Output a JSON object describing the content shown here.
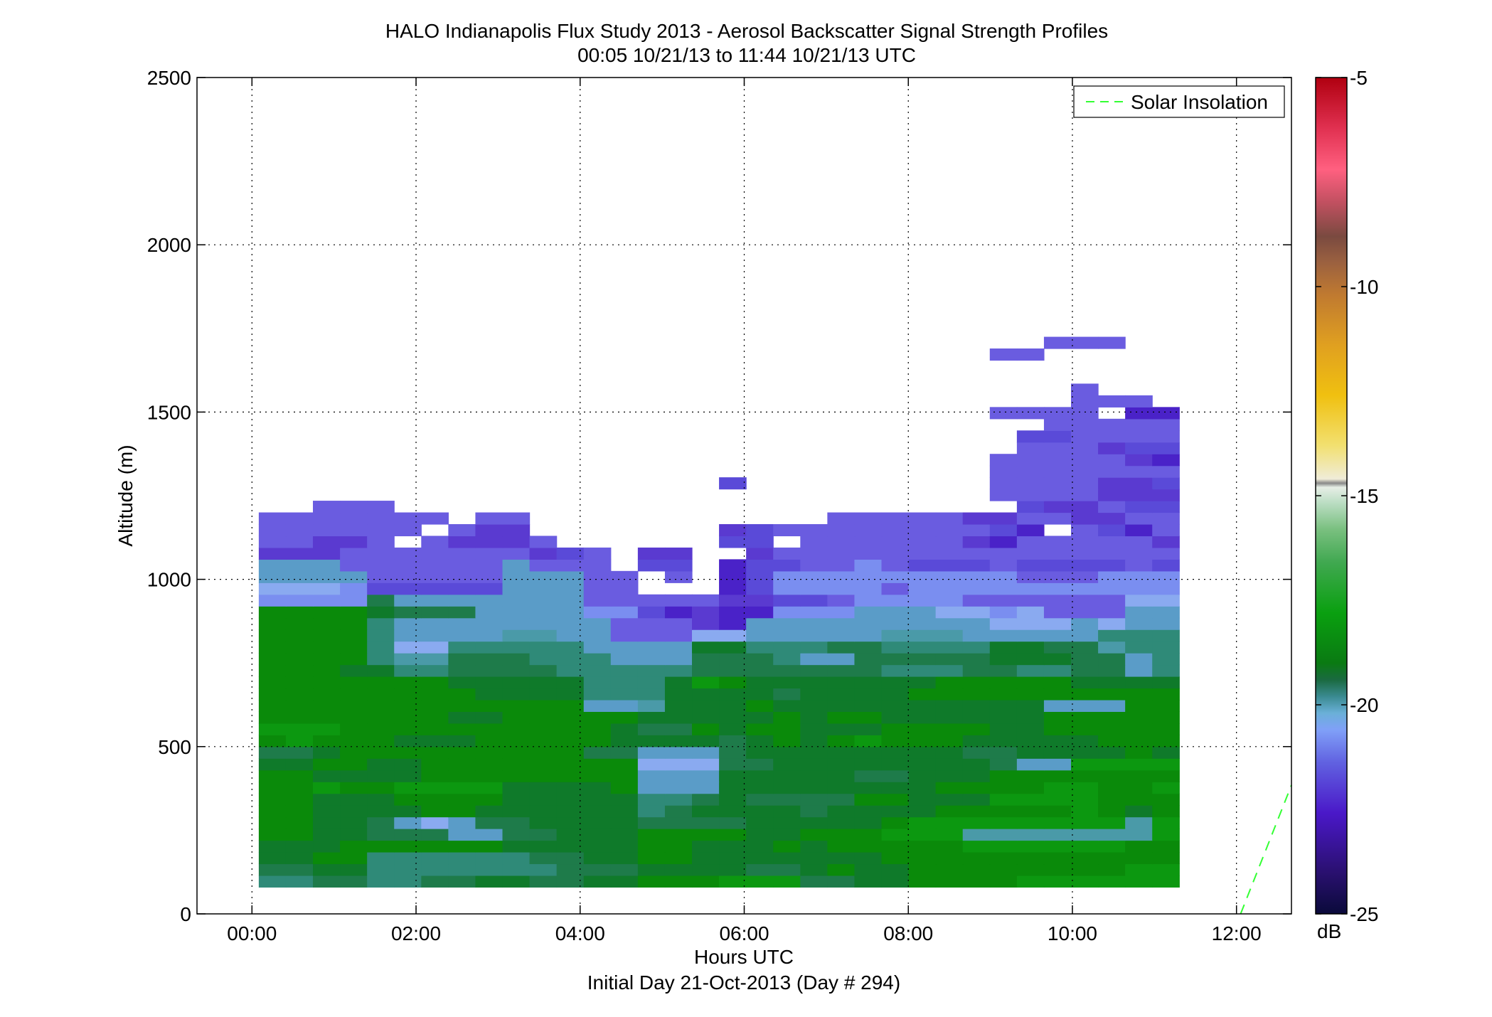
{
  "chart_data": {
    "type": "heatmap",
    "title": "HALO Indianapolis Flux Study 2013 - Aerosol Backscatter Signal Strength Profiles",
    "subtitle": "00:05 10/21/13 to 11:44 10/21/13  UTC",
    "xlabel": "Hours UTC",
    "xlabel2": "Initial Day 21-Oct-2013 (Day # 294)",
    "ylabel": "Altitude (m)",
    "x_ticks": [
      "00:00",
      "02:00",
      "04:00",
      "06:00",
      "08:00",
      "10:00",
      "12:00"
    ],
    "y_ticks": [
      "0",
      "500",
      "1000",
      "1500",
      "2000",
      "2500"
    ],
    "xlim_hours": [
      -0.67,
      12.67
    ],
    "ylim": [
      0,
      2500
    ],
    "grid": true,
    "legend": {
      "label": "Solar Insolation",
      "style": "dashed",
      "color": "#33ff33",
      "placement": "top-right"
    },
    "solar_line": {
      "x_hours": [
        12.05,
        12.67
      ],
      "y": [
        0,
        385
      ]
    },
    "colorbar": {
      "unit": "dB",
      "range": [
        -25,
        -5
      ],
      "ticks": [
        "-5",
        "-10",
        "-15",
        "-20",
        "-25"
      ],
      "tick_values": [
        -5,
        -10,
        -15,
        -20,
        -25
      ]
    },
    "cells": {
      "t_start_hours": 0.083,
      "dt_hours": 0.33,
      "alt_start_m": 80,
      "dz_m": 35,
      "rows_from_bottom": [
        "BBCCBBCCDDCCDDEEEFFFCCDDEEEEFFFFFF",
        "CCDDBBBBBBBCCCDDDDCCDEDDEEEEEEEEFF",
        "DDEEBBBBBBCCDDEEDDDDDDDEEEEEEEEEEE",
        "DDDEEEEEEDDDDDEEDDDEDEEEEEFFFFFFEE",
        "EEDDCCCHHCCDDDEEEEDDEEEFFFGGGGGGGF",
        "EEDDCHIHCCDDDDCCCCDDDDDEFFFFFFFFGF",
        "EEDDDDEEDDDDDDBCDDDDCDDDDEEEEEFEDE",
        "EEDDDEEEEDDDDDBBCDCCCCEEDDDFFFFEEE",
        "EEFEEFFFFDDDDEHHHDDDDDDDDEEEEFFEEF",
        "EEDDDDEEEEEEEEHHHDDDDDCCDDDEEEEEEE",
        "DDEEDDEEEEEEEEIIICCDDDDDDDDCHHFFFF",
        "CCDEEEEEEEEECCHHHCDDDDDDDDCCDDDDED",
        "EFEEEDDDEEEEEDDDDCDEDEFEEEDDDDDEEE",
        "FFFEEEEEEEEEEDCCEDEEDDDEEEEDDEEEEE",
        "EEEEEEEDDEEEEEDDDDDEDEEDDDDDDEEEEE",
        "EEEEEEEEEEEEHHGDDDEDDDDDDDDDDHHHEE",
        "EEEEEEEEDDDDBBBDDDDCDDDDEEEEEEEEEE",
        "EEEEEEEDDDDDBBBDFEDDDDDDDEEEEEDDDD",
        "EEEDDBBCCCCBBBBBCCCCCCCBBBCCBBCCHB",
        "EEEEBGGCCCBBBHHHCCCBHHCCCCCDDDCCHB",
        "EEEEBIIBBBBBHHHHDDBBBCCBBBBDDCCGBB",
        "EEEEBHHHHGGHHKKKIIHHHHHGGGHHHHHBBB",
        "EEEEBHHHHHHHHKKKMNHHHHHHHHHIIIHIHH",
        "EEEEDCCCHHHHJJLNMNNJJJHHHIIJIKKKHH",
        "JJJJCHHHHHHHKKKKKMMLLKJJJJKKKKKKII",
        "IIIJLLLLLHHHKK...NLJJJJKJJJJJJJJJJ",
        "HHHHKKKKKHHHKK.K.NLJJJJJJJJJKKKJJJ",
        "HHHKKKKKKHKKK.LL.NLLKKJKLLLKLLLLKL",
        "MMMKKKKKKKMLK.MM..MKKKKKKKKKKKKKKK",
        "KKMMK.KMMMK......LL.KKKKKKMNKKKKKM",
        "KKKKKK.KMM.......MLKKKKKKKKLN.KLNK",
        "KKKKKKK.KK...........KKKKKMMKKMMKK",
        "..KKK.......................LMMKLL",
        "...........................KKKKMMM",
        ".................L.........KKKKMML",
        "...........................KKKKKKK",
        "...........................KKKKKMN",
        "............................KKKMLL",
        "............................LLKKKK",
        ".............................KKKKK",
        "...........................KKKK.NN",
        "..............................KKK",
        "..............................K..",
        ".................................",
        ".................................",
        "...........................KK....",
        ".............................KKK."
      ],
      "legend_codes": {
        "B": -19.6,
        "C": -19.9,
        "D": -20.2,
        "E": -20.5,
        "F": -20.8,
        "G": -21.0,
        "H": -21.3,
        "I": -21.7,
        "J": -22.0,
        "K": -22.6,
        "L": -23.0,
        "M": -23.4,
        "N": -23.8
      },
      "note_fill_colors": {
        "B": "#2f8a78",
        "C": "#1e7b4a",
        "D": "#0f7a2a",
        "E": "#0a8a0a",
        "F": "#0c9810",
        "G": "#4a9aa8",
        "H": "#5a9cc8",
        "I": "#8aaaf0",
        "J": "#7a8ef0",
        "K": "#6a5ce0",
        "L": "#5a4ad8",
        "M": "#5a3ad0",
        "N": "#4a22c8"
      }
    }
  }
}
